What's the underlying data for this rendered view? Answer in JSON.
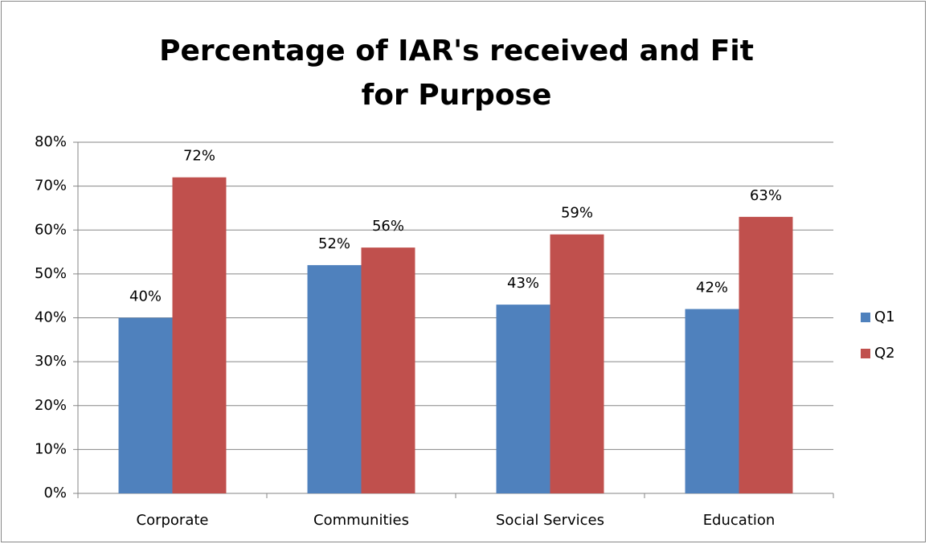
{
  "chart_data": {
    "type": "bar",
    "title": "Percentage of IAR's received and Fit for Purpose",
    "categories": [
      "Corporate",
      "Communities",
      "Social Services",
      "Education"
    ],
    "series": [
      {
        "name": "Q1",
        "color": "#4f81bd",
        "values": [
          40,
          52,
          43,
          42
        ],
        "value_labels": [
          "40%",
          "52%",
          "43%",
          "42%"
        ]
      },
      {
        "name": "Q2",
        "color": "#c0504d",
        "values": [
          72,
          56,
          59,
          63
        ],
        "value_labels": [
          "72%",
          "56%",
          "59%",
          "63%"
        ]
      }
    ],
    "ylim": [
      0,
      80
    ],
    "yticks": [
      {
        "value": 0,
        "label": "0%"
      },
      {
        "value": 10,
        "label": "10%"
      },
      {
        "value": 20,
        "label": "20%"
      },
      {
        "value": 30,
        "label": "30%"
      },
      {
        "value": 40,
        "label": "40%"
      },
      {
        "value": 50,
        "label": "50%"
      },
      {
        "value": 60,
        "label": "60%"
      },
      {
        "value": 70,
        "label": "70%"
      },
      {
        "value": 80,
        "label": "80%"
      }
    ],
    "grid": true,
    "legend": "right"
  }
}
